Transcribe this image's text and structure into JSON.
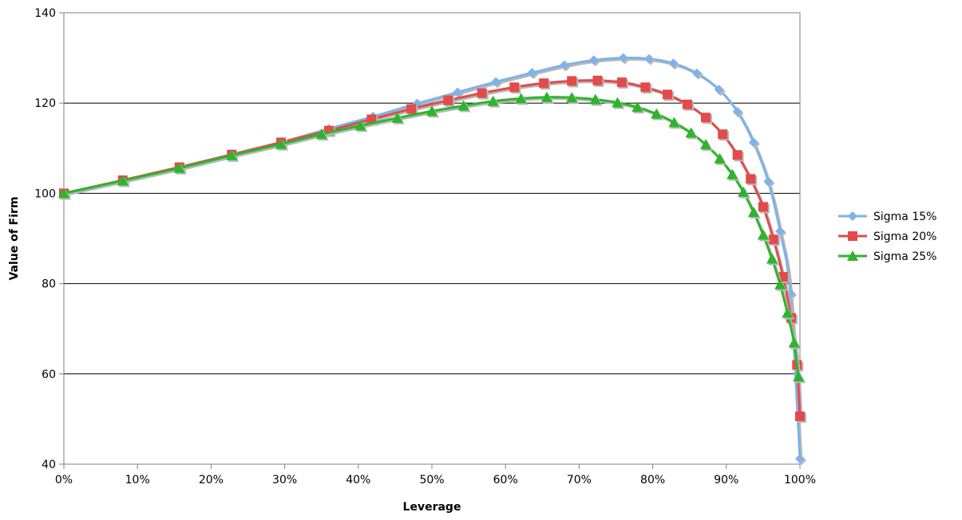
{
  "chart_data": {
    "type": "line",
    "title": "",
    "xlabel": "Leverage",
    "ylabel": "Value of Firm",
    "xlim": [
      0,
      1
    ],
    "ylim": [
      40,
      140
    ],
    "x_ticks": [
      0,
      0.1,
      0.2,
      0.3,
      0.4,
      0.5,
      0.6,
      0.7,
      0.8,
      0.9,
      1.0
    ],
    "x_tick_labels": [
      "0%",
      "10%",
      "20%",
      "30%",
      "40%",
      "50%",
      "60%",
      "70%",
      "80%",
      "90%",
      "100%"
    ],
    "y_ticks": [
      40,
      60,
      80,
      100,
      120,
      140
    ],
    "y_tick_labels": [
      "40",
      "60",
      "80",
      "100",
      "120",
      "140"
    ],
    "grid": "horizontal major",
    "legend_position": "right",
    "series": [
      {
        "name": "Sigma 15%",
        "color": "#7fb2e8",
        "marker": "diamond",
        "points": [
          [
            0.0,
            100.0
          ],
          [
            0.08,
            102.9
          ],
          [
            0.157,
            105.7
          ],
          [
            0.228,
            108.5
          ],
          [
            0.295,
            111.3
          ],
          [
            0.36,
            114.3
          ],
          [
            0.42,
            117.0
          ],
          [
            0.48,
            119.9
          ],
          [
            0.535,
            122.4
          ],
          [
            0.587,
            124.7
          ],
          [
            0.636,
            126.7
          ],
          [
            0.68,
            128.4
          ],
          [
            0.72,
            129.5
          ],
          [
            0.76,
            130.0
          ],
          [
            0.795,
            129.8
          ],
          [
            0.828,
            128.8
          ],
          [
            0.86,
            126.6
          ],
          [
            0.89,
            123.0
          ],
          [
            0.915,
            118.1
          ],
          [
            0.937,
            111.3
          ],
          [
            0.957,
            102.6
          ],
          [
            0.973,
            91.6
          ],
          [
            0.987,
            77.8
          ],
          [
            1.0,
            41.2
          ]
        ]
      },
      {
        "name": "Sigma 20%",
        "color": "#e24b4b",
        "marker": "square",
        "points": [
          [
            0.0,
            100.0
          ],
          [
            0.08,
            102.9
          ],
          [
            0.157,
            105.8
          ],
          [
            0.228,
            108.6
          ],
          [
            0.295,
            111.3
          ],
          [
            0.36,
            113.9
          ],
          [
            0.418,
            116.4
          ],
          [
            0.472,
            118.7
          ],
          [
            0.522,
            120.6
          ],
          [
            0.568,
            122.2
          ],
          [
            0.612,
            123.5
          ],
          [
            0.652,
            124.4
          ],
          [
            0.69,
            124.9
          ],
          [
            0.725,
            125.0
          ],
          [
            0.758,
            124.6
          ],
          [
            0.79,
            123.5
          ],
          [
            0.82,
            121.9
          ],
          [
            0.847,
            119.7
          ],
          [
            0.872,
            116.8
          ],
          [
            0.895,
            113.1
          ],
          [
            0.915,
            108.5
          ],
          [
            0.933,
            103.2
          ],
          [
            0.95,
            97.0
          ],
          [
            0.964,
            89.8
          ],
          [
            0.977,
            81.5
          ],
          [
            0.988,
            72.4
          ],
          [
            0.996,
            62.0
          ],
          [
            1.0,
            50.6
          ]
        ]
      },
      {
        "name": "Sigma 25%",
        "color": "#2cb52c",
        "marker": "triangle",
        "points": [
          [
            0.0,
            100.0
          ],
          [
            0.08,
            102.8
          ],
          [
            0.157,
            105.6
          ],
          [
            0.228,
            108.4
          ],
          [
            0.295,
            110.9
          ],
          [
            0.35,
            113.1
          ],
          [
            0.403,
            115.0
          ],
          [
            0.453,
            116.7
          ],
          [
            0.5,
            118.2
          ],
          [
            0.543,
            119.4
          ],
          [
            0.583,
            120.4
          ],
          [
            0.621,
            121.0
          ],
          [
            0.656,
            121.3
          ],
          [
            0.69,
            121.2
          ],
          [
            0.722,
            120.8
          ],
          [
            0.752,
            120.1
          ],
          [
            0.779,
            119.1
          ],
          [
            0.805,
            117.6
          ],
          [
            0.829,
            115.7
          ],
          [
            0.852,
            113.4
          ],
          [
            0.872,
            110.8
          ],
          [
            0.891,
            107.7
          ],
          [
            0.908,
            104.2
          ],
          [
            0.923,
            100.3
          ],
          [
            0.937,
            95.8
          ],
          [
            0.95,
            90.8
          ],
          [
            0.962,
            85.5
          ],
          [
            0.973,
            79.8
          ],
          [
            0.983,
            73.5
          ],
          [
            0.992,
            66.9
          ],
          [
            0.998,
            59.4
          ]
        ]
      }
    ]
  }
}
